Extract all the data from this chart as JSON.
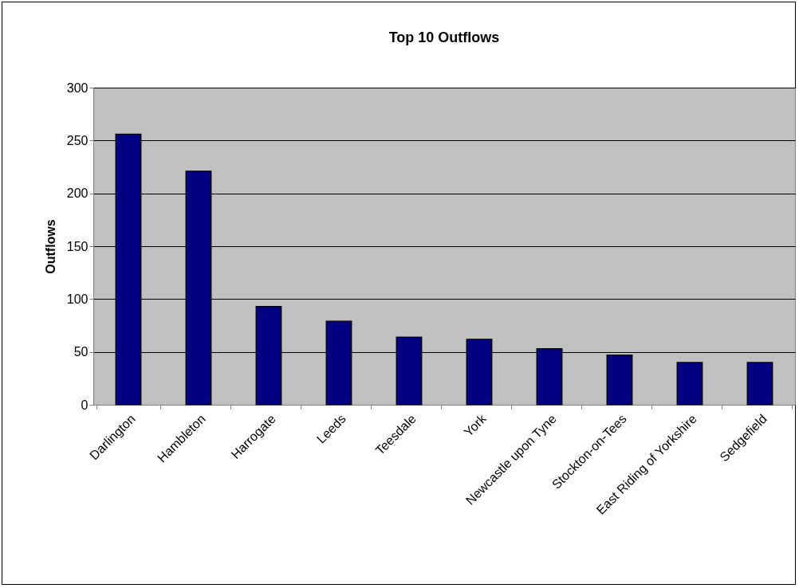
{
  "chart_data": {
    "type": "bar",
    "title": "Top 10 Outflows",
    "ylabel": "Outflows",
    "categories": [
      "Darlington",
      "Hambleton",
      "Harrogate",
      "Leeds",
      "Teesdale",
      "York",
      "Newcastle upon Tyne",
      "Stockton-on-Tees",
      "East Riding of Yorkshire",
      "Sedgefield"
    ],
    "values": [
      256,
      221,
      93,
      79,
      64,
      62,
      53,
      47,
      40,
      40
    ],
    "color": "#000080",
    "ylim": [
      0,
      300
    ],
    "yticks": [
      0,
      50,
      100,
      150,
      200,
      250,
      300
    ],
    "grid": "y"
  }
}
